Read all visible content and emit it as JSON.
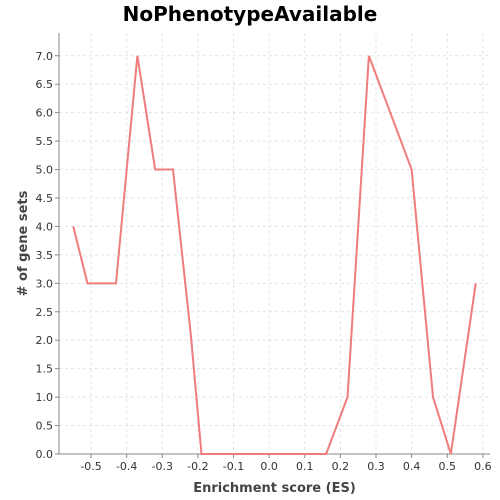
{
  "chart_data": {
    "type": "line",
    "title": "NoPhenotypeAvailable",
    "xlabel": "Enrichment score (ES)",
    "ylabel": "# of gene sets",
    "xlim": [
      -0.59,
      0.62
    ],
    "ylim": [
      0,
      7.4
    ],
    "xticks": [
      -0.5,
      -0.4,
      -0.3,
      -0.2,
      -0.1,
      0.0,
      0.1,
      0.2,
      0.3,
      0.4,
      0.5,
      0.6
    ],
    "xtick_labels": [
      "-0.5",
      "-0.4",
      "-0.3",
      "-0.2",
      "-0.1",
      "0.0",
      "0.1",
      "0.2",
      "0.3",
      "0.4",
      "0.5",
      "0.6"
    ],
    "yticks": [
      0,
      0.5,
      1,
      1.5,
      2,
      2.5,
      3,
      3.5,
      4,
      4.5,
      5,
      5.5,
      6,
      6.5,
      7
    ],
    "ytick_labels": [
      "0.0",
      "0.5",
      "1.0",
      "1.5",
      "2.0",
      "2.5",
      "3.0",
      "3.5",
      "4.0",
      "4.5",
      "5.0",
      "5.5",
      "6.0",
      "6.5",
      "7.0"
    ],
    "grid": true,
    "color": "#f07c7c",
    "series": [
      {
        "x": [
          -0.55,
          -0.51,
          -0.43,
          -0.37,
          -0.32,
          -0.27,
          -0.22,
          -0.19,
          0.16,
          0.22,
          0.28,
          0.4,
          0.46,
          0.51,
          0.58
        ],
        "y": [
          4,
          3,
          3,
          7,
          5,
          5,
          2.1,
          0,
          0,
          1,
          7,
          5,
          1,
          0,
          3
        ]
      }
    ]
  }
}
